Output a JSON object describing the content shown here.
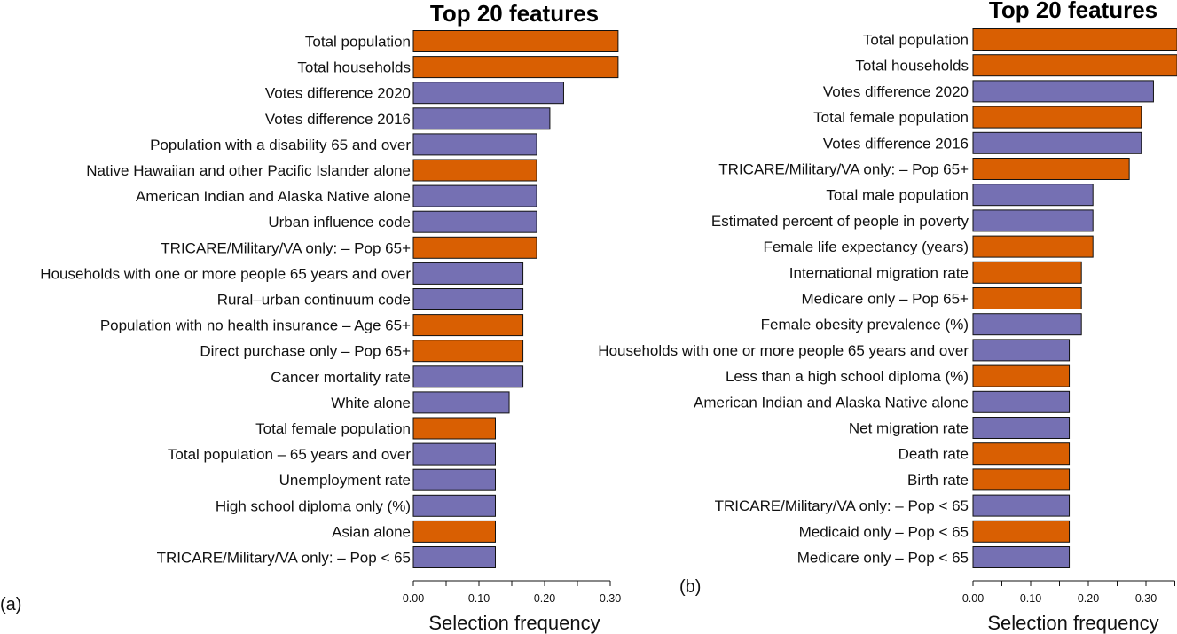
{
  "chart_data": [
    {
      "type": "bar",
      "orientation": "horizontal",
      "panel_label": "(a)",
      "title": "Top 20 features",
      "xlabel": "Selection frequency",
      "ylabel": "",
      "xlim": [
        0,
        0.31
      ],
      "xticks": [
        0.0,
        0.05,
        0.1,
        0.15,
        0.2,
        0.25,
        0.3
      ],
      "xtick_labels": [
        "0.00",
        "",
        "0.10",
        "",
        "0.20",
        "",
        "0.30"
      ],
      "legend": "none",
      "categories": [
        "Total population",
        "Total households",
        "Votes difference 2020",
        "Votes difference 2016",
        "Population with a disability 65 and over",
        "Native Hawaiian and other Pacific Islander alone",
        "American Indian and Alaska Native alone",
        "Urban influence code",
        "TRICARE/Military/VA only: – Pop 65+",
        "Households with one or more people 65 years and over",
        "Rural–urban continuum code",
        "Population with no health insurance – Age 65+",
        "Direct purchase only – Pop 65+",
        "Cancer mortality rate",
        "White alone",
        "Total female population",
        "Total population – 65 years and over",
        "Unemployment rate",
        "High school diploma only (%)",
        "Asian alone",
        "TRICARE/Military/VA only: – Pop < 65"
      ],
      "values": [
        0.312,
        0.312,
        0.229,
        0.208,
        0.188,
        0.188,
        0.188,
        0.188,
        0.188,
        0.167,
        0.167,
        0.167,
        0.167,
        0.167,
        0.146,
        0.125,
        0.125,
        0.125,
        0.125,
        0.125,
        0.125
      ],
      "colors": [
        "#d95f02",
        "#d95f02",
        "#7570b3",
        "#7570b3",
        "#7570b3",
        "#d95f02",
        "#7570b3",
        "#7570b3",
        "#d95f02",
        "#7570b3",
        "#7570b3",
        "#d95f02",
        "#d95f02",
        "#7570b3",
        "#7570b3",
        "#d95f02",
        "#7570b3",
        "#7570b3",
        "#7570b3",
        "#d95f02",
        "#7570b3"
      ]
    },
    {
      "type": "bar",
      "orientation": "horizontal",
      "panel_label": "(b)",
      "title": "Top 20 features",
      "xlabel": "Selection frequency",
      "ylabel": "",
      "xlim": [
        0,
        0.35
      ],
      "xticks": [
        0.0,
        0.05,
        0.1,
        0.15,
        0.2,
        0.25,
        0.3,
        0.35
      ],
      "xtick_labels": [
        "0.00",
        "",
        "0.10",
        "",
        "0.20",
        "",
        "0.30",
        ""
      ],
      "legend": "none",
      "categories": [
        "Total population",
        "Total households",
        "Votes difference 2020",
        "Total female population",
        "Votes difference 2016",
        "TRICARE/Military/VA only: – Pop 65+",
        "Total male population",
        "Estimated percent of people in poverty",
        "Female life expectancy (years)",
        "International migration rate",
        "Medicare only – Pop 65+",
        "Female obesity prevalence (%)",
        "Households with one or more people 65 years and over",
        "Less than a high school diploma (%)",
        "American Indian and Alaska Native alone",
        "Net migration rate",
        "Death rate",
        "Birth rate",
        "TRICARE/Military/VA only: – Pop < 65",
        "Medicaid only – Pop < 65",
        "Medicare only – Pop < 65"
      ],
      "values": [
        0.354,
        0.354,
        0.313,
        0.292,
        0.292,
        0.271,
        0.208,
        0.208,
        0.208,
        0.188,
        0.188,
        0.188,
        0.167,
        0.167,
        0.167,
        0.167,
        0.167,
        0.167,
        0.167,
        0.167,
        0.167
      ],
      "colors": [
        "#d95f02",
        "#d95f02",
        "#7570b3",
        "#d95f02",
        "#7570b3",
        "#d95f02",
        "#7570b3",
        "#7570b3",
        "#d95f02",
        "#d95f02",
        "#d95f02",
        "#7570b3",
        "#7570b3",
        "#d95f02",
        "#7570b3",
        "#7570b3",
        "#d95f02",
        "#d95f02",
        "#7570b3",
        "#d95f02",
        "#7570b3"
      ]
    }
  ]
}
